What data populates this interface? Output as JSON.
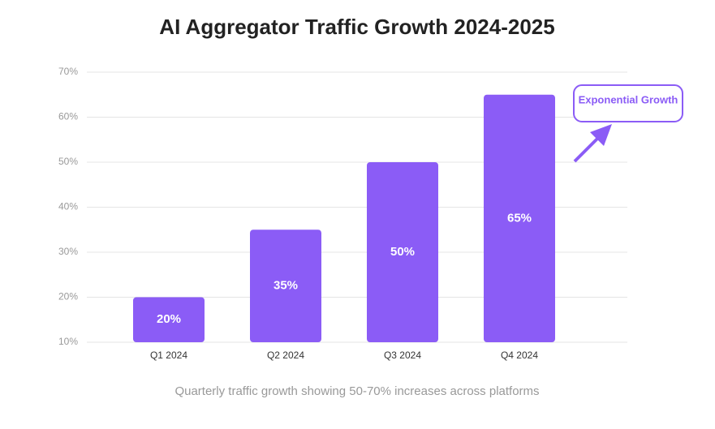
{
  "chart_data": {
    "type": "bar",
    "title": "AI Aggregator Traffic Growth 2024-2025",
    "subtitle": "Quarterly traffic growth showing 50-70% increases across platforms",
    "categories": [
      "Q1 2024",
      "Q2 2024",
      "Q3 2024",
      "Q4 2024"
    ],
    "values": [
      20,
      35,
      50,
      65
    ],
    "value_labels": [
      "20%",
      "35%",
      "50%",
      "65%"
    ],
    "color": "#8b5cf6",
    "ylim": [
      10,
      70
    ],
    "yticks": [
      {
        "value": 10,
        "label": "10%"
      },
      {
        "value": 20,
        "label": "20%"
      },
      {
        "value": 30,
        "label": "30%"
      },
      {
        "value": 40,
        "label": "40%"
      },
      {
        "value": 50,
        "label": "50%"
      },
      {
        "value": 60,
        "label": "60%"
      },
      {
        "value": 70,
        "label": "70%"
      }
    ],
    "grid": true,
    "annotation": "Exponential Growth"
  }
}
